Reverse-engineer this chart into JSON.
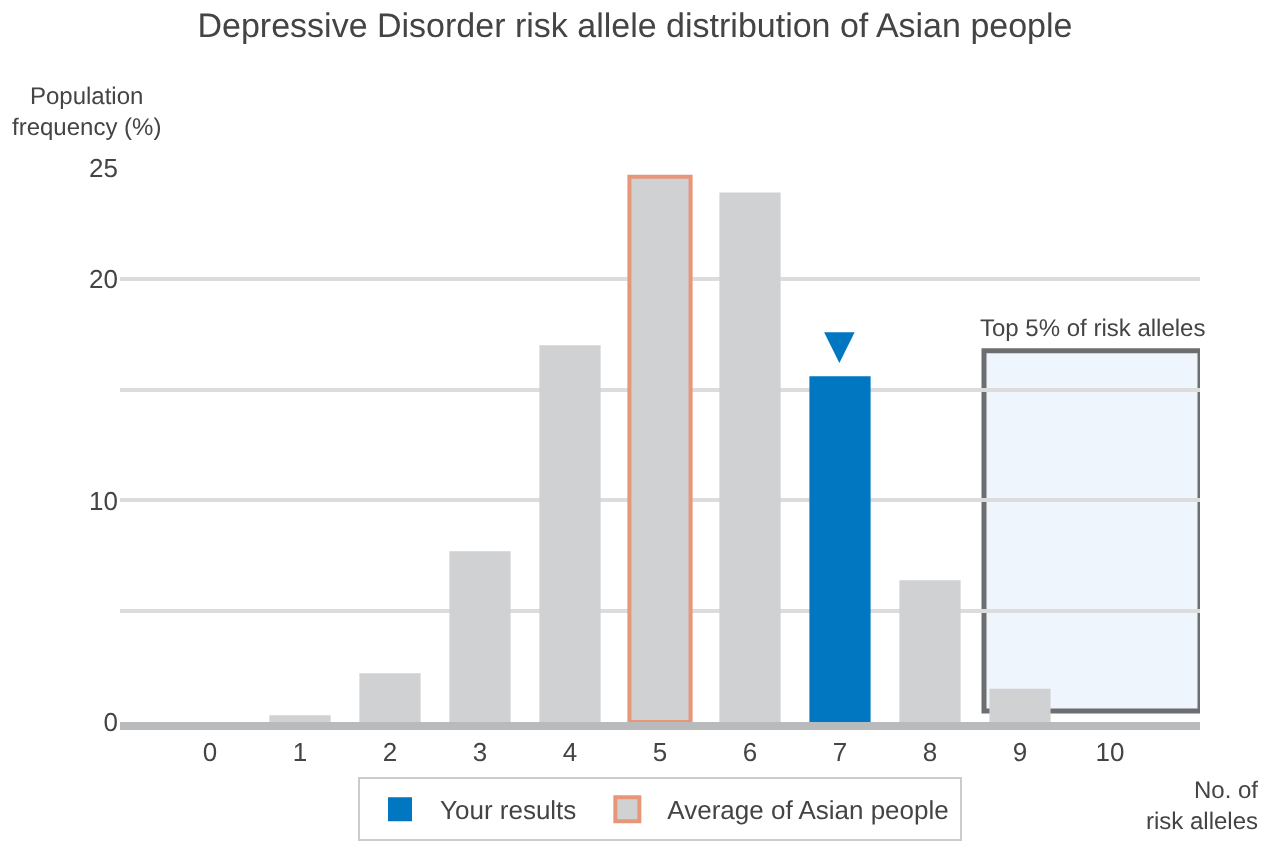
{
  "chart_data": {
    "type": "bar",
    "title": "Depressive Disorder risk allele distribution of Asian people",
    "xlabel": "No. of\nrisk alleles",
    "ylabel": "Population\nfrequency (%)",
    "x": [
      0,
      1,
      2,
      3,
      4,
      5,
      6,
      7,
      8,
      9,
      10
    ],
    "xlim": [
      -1,
      11
    ],
    "xticks": [
      0,
      1,
      2,
      3,
      4,
      5,
      6,
      7,
      8,
      9,
      10
    ],
    "ylim": [
      0,
      25
    ],
    "yticks": [
      0,
      {
        "value": 5,
        "label": null
      },
      10,
      {
        "value": 15,
        "label": null
      },
      20,
      25
    ],
    "series": [
      {
        "color": "#d0d1d3",
        "values": [
          0,
          0.3,
          2.2,
          7.7,
          17.0,
          null,
          23.9,
          null,
          6.4,
          1.5,
          0
        ]
      },
      {
        "name": "Your results",
        "color": "#0077c0",
        "values": [
          null,
          null,
          null,
          null,
          null,
          null,
          null,
          15.6,
          null,
          null,
          null
        ]
      },
      {
        "name": "Average of Asian people",
        "color": "#e8967a",
        "values": [
          null,
          null,
          null,
          null,
          null,
          24.6,
          null,
          null,
          null,
          null,
          null
        ]
      }
    ],
    "bands": [
      {
        "axis": "x",
        "from": 8.6,
        "to": 11,
        "label": "Top 5% of risk alleles",
        "color": "#eef5fc"
      }
    ],
    "annotations": [
      {
        "text": "▼",
        "x": 7,
        "y": 15.6
      }
    ],
    "grid": "y",
    "legend": "bottom"
  }
}
